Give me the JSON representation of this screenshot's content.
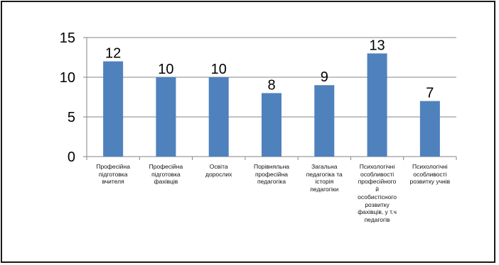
{
  "chart_data": {
    "type": "bar",
    "categories": [
      "Професійна\nпідготовка\nвчителя",
      "Професійна\nпідготовка\nфахівців",
      "Освіта\nдорослих",
      "Порівняльна\nпрофесійна\nпедагогіка",
      "Загальна\nпедагогіка та\nісторія\nпедагогіки",
      "Психологічні\nособливості\nпрофесійного\nй\nособистісного\nрозвитку\nфахівців, у т.ч\nпедагогів",
      "Психологічні\nособливості\nрозвитку учнів"
    ],
    "values": [
      12,
      10,
      10,
      8,
      9,
      13,
      7
    ],
    "data_labels": [
      "12",
      "10",
      "10",
      "8",
      "9",
      "13",
      "7"
    ],
    "yticks": [
      0,
      5,
      10,
      15
    ],
    "ylim": [
      0,
      15
    ],
    "grid": true,
    "legend": false,
    "colors": {
      "bar": "#4f81bd",
      "grid": "#868686",
      "axis": "#868686"
    }
  }
}
